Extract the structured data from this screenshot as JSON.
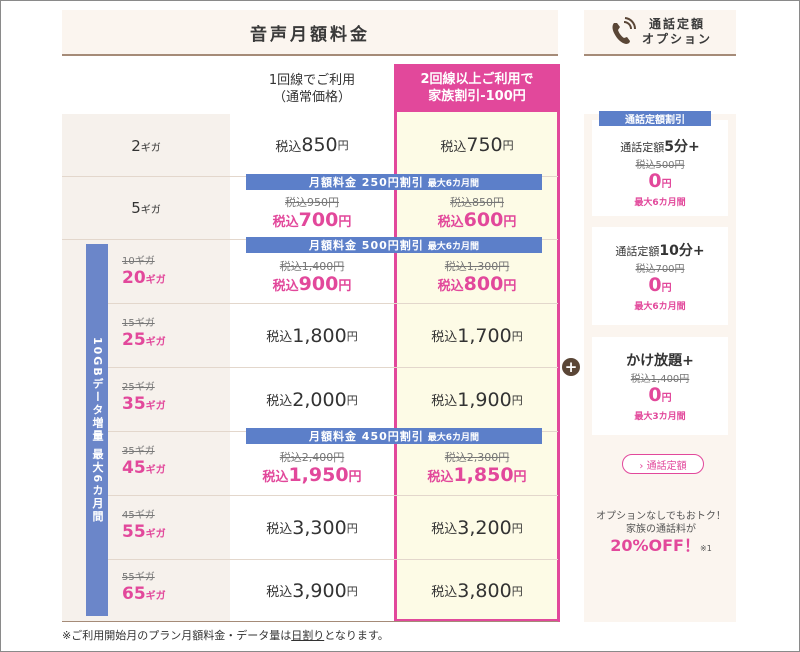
{
  "header": {
    "title": "音声月額料金",
    "option_title_line1": "通話定額",
    "option_title_line2": "オプション"
  },
  "columns": {
    "normal_line1": "1回線でご利用",
    "normal_line2": "（通常価格）",
    "family_line1": "2回線以上ご利用で",
    "family_line2": "家族割引-100円"
  },
  "rows": [
    {
      "label": "2",
      "unit": "ギガ",
      "normal": "850",
      "family": "750"
    },
    {
      "label": "5",
      "unit": "ギガ",
      "normal_old": "税込950円",
      "normal": "700",
      "family_old": "税込850円",
      "family": "600"
    },
    {
      "old_label": "10ギガ",
      "label": "20",
      "unit": "ギガ",
      "normal_old": "税込1,400円",
      "normal": "900",
      "family_old": "税込1,300円",
      "family": "800"
    },
    {
      "old_label": "15ギガ",
      "label": "25",
      "unit": "ギガ",
      "normal": "1,800",
      "family": "1,700"
    },
    {
      "old_label": "25ギガ",
      "label": "35",
      "unit": "ギガ",
      "normal": "2,000",
      "family": "1,900"
    },
    {
      "old_label": "35ギガ",
      "label": "45",
      "unit": "ギガ",
      "normal_old": "税込2,400円",
      "normal": "1,950",
      "family_old": "税込2,300円",
      "family": "1,850"
    },
    {
      "old_label": "45ギガ",
      "label": "55",
      "unit": "ギガ",
      "normal": "3,300",
      "family": "3,200"
    },
    {
      "old_label": "55ギガ",
      "label": "65",
      "unit": "ギガ",
      "normal": "3,900",
      "family": "3,800"
    }
  ],
  "tax_prefix": "税込",
  "yen": "円",
  "banners": {
    "b250": "月額料金 250円割引",
    "b500": "月額料金 500円割引",
    "b450": "月額料金 450円割引",
    "period": "最大6カ月間"
  },
  "sidebar_label": "10GBデータ増量 最大6カ月間",
  "footnote_pre": "※ご利用開始月のプラン月額料金・データ量は",
  "footnote_link": "日割り",
  "footnote_post": "となります。",
  "options": {
    "tag": "通話定額割引",
    "card1_pre": "通話定額",
    "card1_b": "5分+",
    "card1_old": "税込500円",
    "zero": "0",
    "yen": "円",
    "card1_max": "最大6カ月間",
    "card2_pre": "通話定額",
    "card2_b": "10分+",
    "card2_old": "税込700円",
    "card2_max": "最大6カ月間",
    "card3_b": "かけ放題+",
    "card3_old": "税込1,400円",
    "card3_max": "最大3カ月間",
    "button": "› 通話定額",
    "note1": "オプションなしでもおトク！",
    "note2": "家族の通話料が",
    "note_off": "20%OFF！",
    "note_mark": "※1"
  },
  "plus_symbol": "+",
  "colors": {
    "pink": "#e2489b",
    "blue": "#5c7fc9",
    "beige": "#fbf5ef",
    "brown": "#5a4636"
  }
}
